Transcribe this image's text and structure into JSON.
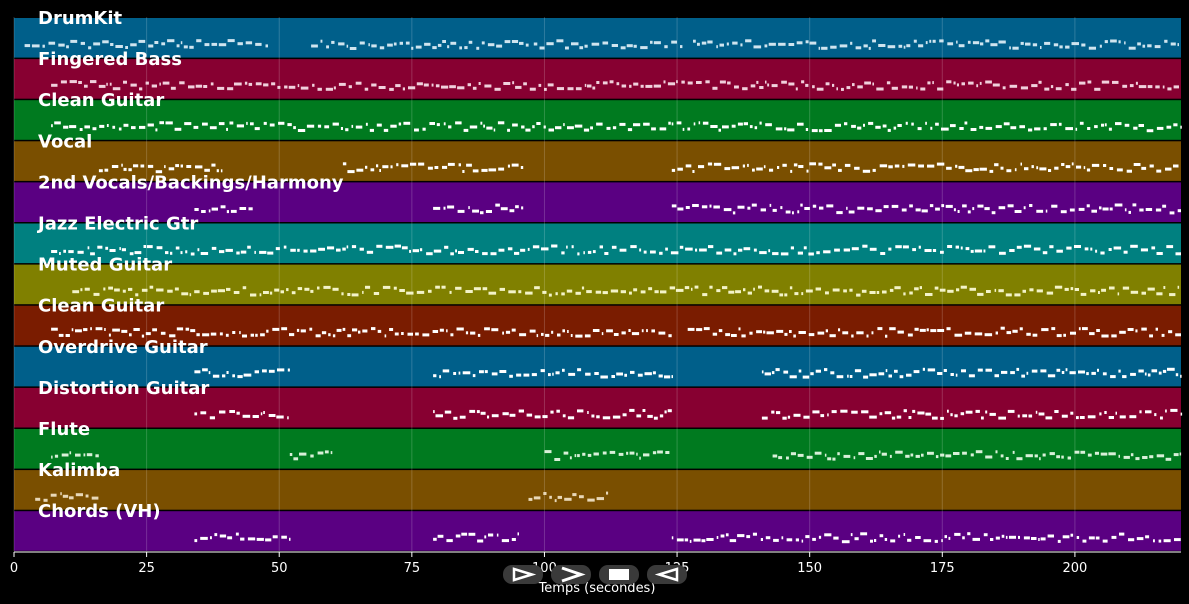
{
  "chart_data": {
    "type": "piano-roll",
    "xlabel": "Temps (secondes)",
    "xlim": [
      0,
      220
    ],
    "xticks": [
      0,
      25,
      50,
      75,
      100,
      125,
      150,
      175,
      200
    ],
    "tracks": [
      {
        "name": "DrumKit",
        "color": "#005f8a",
        "note_color": "#cfe4ef",
        "active": [
          [
            2,
            48
          ],
          [
            56,
            97
          ],
          [
            98,
            126
          ],
          [
            128,
            220
          ]
        ]
      },
      {
        "name": "Fingered Bass",
        "color": "#870031",
        "note_color": "#f0d0dc",
        "active": [
          [
            7,
            220
          ]
        ]
      },
      {
        "name": "Clean Guitar",
        "color": "#007a1f",
        "note_color": "#ffffff",
        "active": [
          [
            7,
            220
          ]
        ]
      },
      {
        "name": "Vocal",
        "color": "#7a4f00",
        "note_color": "#ffffff",
        "active": [
          [
            16,
            39
          ],
          [
            62,
            96
          ],
          [
            124,
            220
          ]
        ]
      },
      {
        "name": "2nd Vocals/Backings/Harmony",
        "color": "#5a0082",
        "note_color": "#ffffff",
        "active": [
          [
            34,
            45
          ],
          [
            79,
            96
          ],
          [
            124,
            220
          ]
        ]
      },
      {
        "name": "Jazz Electric Gtr",
        "color": "#008080",
        "note_color": "#ffffff",
        "active": [
          [
            7,
            220
          ]
        ]
      },
      {
        "name": "Muted Guitar",
        "color": "#808000",
        "note_color": "#f3f3c8",
        "active": [
          [
            11,
            220
          ]
        ]
      },
      {
        "name": "Clean Guitar",
        "color": "#7a1c00",
        "note_color": "#ffffff",
        "active": [
          [
            7,
            124
          ],
          [
            127,
            220
          ]
        ]
      },
      {
        "name": "Overdrive Guitar",
        "color": "#005f8a",
        "note_color": "#ffffff",
        "active": [
          [
            34,
            52
          ],
          [
            79,
            124
          ],
          [
            141,
            220
          ]
        ]
      },
      {
        "name": "Distortion Guitar",
        "color": "#870031",
        "note_color": "#ffffff",
        "active": [
          [
            34,
            52
          ],
          [
            79,
            124
          ],
          [
            141,
            220
          ]
        ]
      },
      {
        "name": "Flute",
        "color": "#007a1f",
        "note_color": "#d8f0d8",
        "active": [
          [
            7,
            16
          ],
          [
            52,
            60
          ],
          [
            100,
            124
          ],
          [
            143,
            220
          ]
        ]
      },
      {
        "name": "Kalimba",
        "color": "#7a4f00",
        "note_color": "#e8d8b8",
        "active": [
          [
            4,
            16
          ],
          [
            97,
            112
          ]
        ]
      },
      {
        "name": "Chords (VH)",
        "color": "#5a0082",
        "note_color": "#ffffff",
        "active": [
          [
            34,
            52
          ],
          [
            79,
            95
          ],
          [
            124,
            220
          ]
        ]
      }
    ]
  },
  "controls": {
    "play_glyph": "⊳",
    "next_glyph": ">",
    "stop_glyph": "■",
    "prev_glyph": "⊲"
  }
}
